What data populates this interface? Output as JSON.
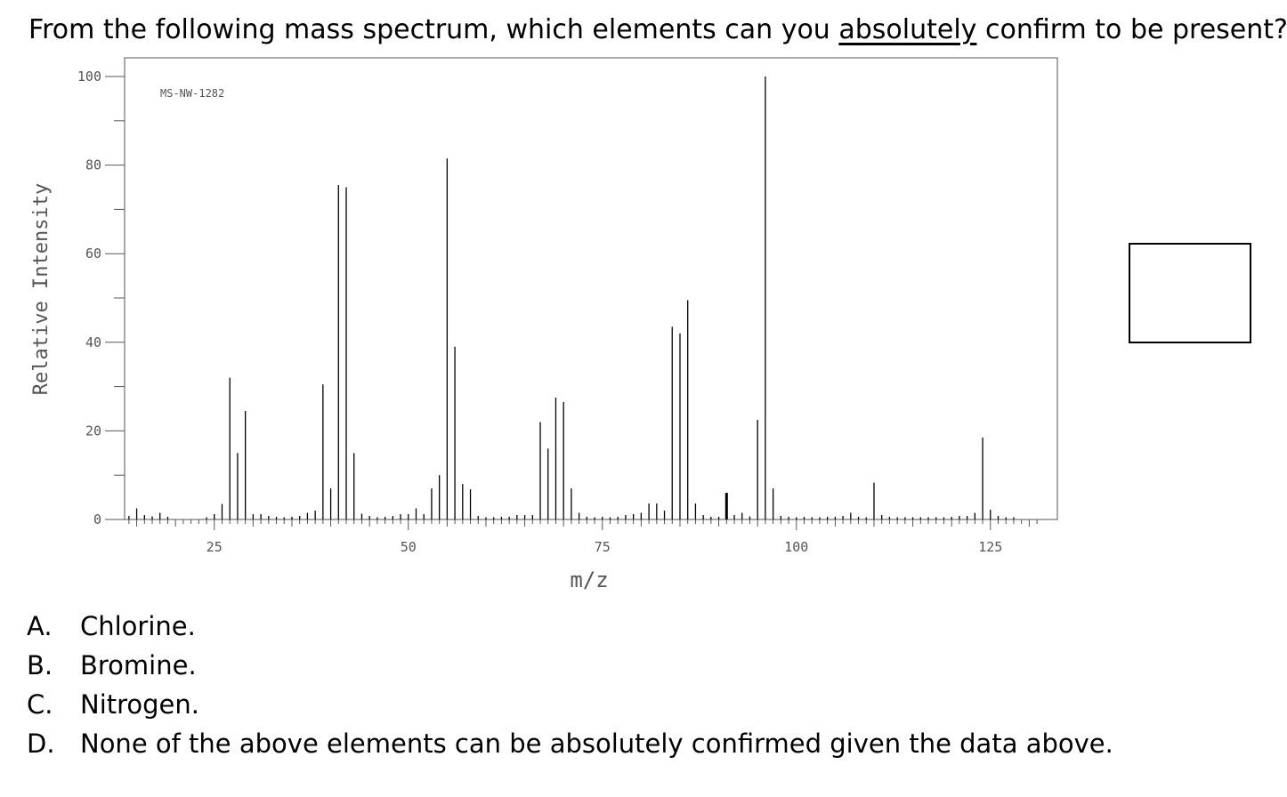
{
  "question": {
    "before": "From the following mass spectrum, which elements can you ",
    "emphasis": "absolutely",
    "after": " confirm to be present?"
  },
  "options": [
    {
      "letter": "A.",
      "text": "Chlorine."
    },
    {
      "letter": "B.",
      "text": "Bromine."
    },
    {
      "letter": "C.",
      "text": "Nitrogen."
    },
    {
      "letter": "D.",
      "text": "None of the above elements can be absolutely confirmed given the data above."
    }
  ],
  "chart_data": {
    "type": "bar",
    "subtype": "mass-spectrum-stick",
    "annotation": "MS-NW-1282",
    "xlabel": "m/z",
    "ylabel": "Relative Intensity",
    "xlim": [
      10,
      131
    ],
    "ylim": [
      0,
      104
    ],
    "x_ticks": [
      25,
      50,
      75,
      100,
      125
    ],
    "y_ticks": [
      0,
      20,
      40,
      60,
      80,
      100
    ],
    "grid": false,
    "x": [
      14,
      15,
      16,
      17,
      18,
      19,
      24,
      25,
      26,
      27,
      28,
      29,
      30,
      31,
      32,
      33,
      34,
      35,
      36,
      37,
      38,
      39,
      40,
      41,
      42,
      43,
      44,
      45,
      46,
      47,
      48,
      49,
      50,
      51,
      52,
      53,
      54,
      55,
      56,
      57,
      58,
      59,
      60,
      61,
      62,
      63,
      64,
      65,
      66,
      67,
      68,
      69,
      70,
      71,
      72,
      73,
      74,
      75,
      76,
      77,
      78,
      79,
      80,
      81,
      82,
      83,
      84,
      85,
      86,
      87,
      88,
      89,
      90,
      91,
      92,
      93,
      94,
      95,
      96,
      97,
      98,
      99,
      100,
      101,
      102,
      103,
      104,
      105,
      106,
      107,
      108,
      109,
      110,
      111,
      112,
      113,
      114,
      115,
      116,
      117,
      118,
      119,
      120,
      121,
      122,
      123,
      124,
      125,
      126,
      127,
      128
    ],
    "values": [
      0.8,
      2.5,
      1.0,
      0.7,
      1.5,
      0.6,
      0.5,
      1.2,
      3.5,
      32,
      15,
      24.5,
      1.2,
      1.2,
      0.8,
      0.6,
      0.5,
      0.6,
      0.8,
      1.5,
      2.0,
      30.5,
      7,
      75.5,
      75,
      15,
      1.3,
      0.8,
      0.5,
      0.6,
      0.8,
      1.2,
      1.2,
      2.5,
      1.2,
      7,
      10,
      81.5,
      39,
      8,
      6.8,
      0.8,
      0.5,
      0.5,
      0.6,
      0.6,
      1.0,
      1.0,
      1.0,
      22,
      16,
      27.5,
      26.5,
      7,
      1.5,
      0.6,
      0.5,
      0.6,
      0.5,
      0.6,
      1.0,
      1.2,
      1.5,
      3.6,
      3.6,
      2.0,
      43.5,
      42,
      49.5,
      3.6,
      1.0,
      0.6,
      0.6,
      6.0,
      1.0,
      1.5,
      0.7,
      22.5,
      100,
      7,
      0.8,
      0.6,
      0.5,
      0.6,
      0.5,
      0.5,
      0.6,
      0.6,
      0.8,
      1.5,
      0.6,
      0.5,
      8.3,
      1.0,
      0.6,
      0.5,
      0.5,
      0.5,
      0.5,
      0.5,
      0.5,
      0.5,
      0.6,
      0.8,
      0.8,
      1.5,
      18.5,
      2.2,
      0.8,
      0.5,
      0.5
    ],
    "bold_x": [
      91
    ]
  }
}
